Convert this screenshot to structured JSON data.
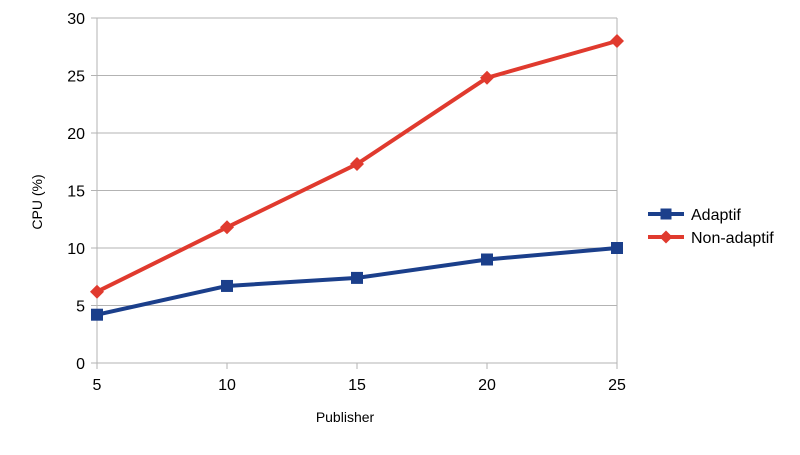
{
  "chart_data": {
    "type": "line",
    "title": "",
    "xlabel": "Publisher",
    "ylabel": "CPU (%)",
    "x": [
      5,
      10,
      15,
      20,
      25
    ],
    "x_tick_labels": [
      "5",
      "10",
      "15",
      "20",
      "25"
    ],
    "y_tick_labels": [
      "0",
      "5",
      "10",
      "15",
      "20",
      "25",
      "30"
    ],
    "xlim": [
      5,
      25
    ],
    "ylim": [
      0,
      30
    ],
    "grid": "horizontal",
    "legend_position": "right",
    "series": [
      {
        "name": "Adaptif",
        "values": [
          4.2,
          6.7,
          7.4,
          9.0,
          10.0
        ],
        "color": "#1b3f8b",
        "marker": "square"
      },
      {
        "name": "Non-adaptif",
        "values": [
          6.2,
          11.8,
          17.3,
          24.8,
          28.0
        ],
        "color": "#e03a2e",
        "marker": "diamond"
      }
    ]
  }
}
